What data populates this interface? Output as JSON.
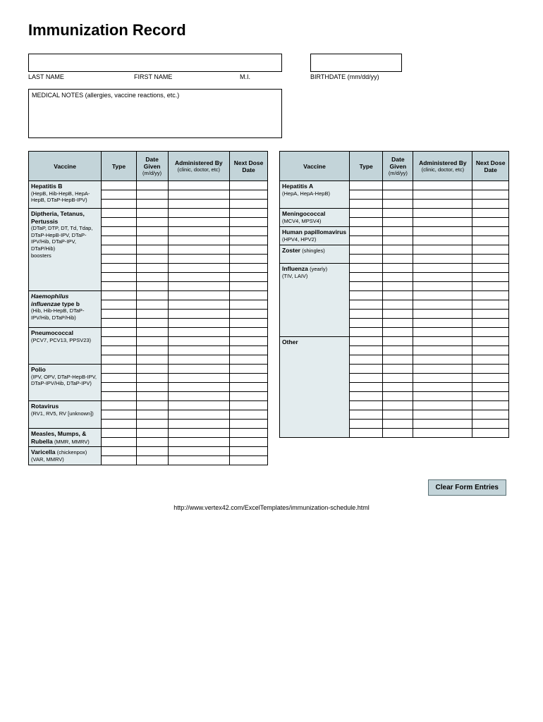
{
  "title": "Immunization Record",
  "fields": {
    "lastname_label": "LAST NAME",
    "firstname_label": "FIRST NAME",
    "mi_label": "M.I.",
    "birthdate_label": "BIRTHDATE (mm/dd/yy)",
    "notes_label": "MEDICAL NOTES (allergies, vaccine reactions, etc.)"
  },
  "headers": {
    "vaccine": "Vaccine",
    "type": "Type",
    "date": "Date Given",
    "date_sub": "(m/d/yy)",
    "admin": "Administered By",
    "admin_sub": "(clinic, doctor, etc)",
    "next": "Next Dose Date"
  },
  "left_sections": [
    {
      "name": "Hepatitis B",
      "detail": "(HepB, Hib-HepB, HepA-HepB, DTaP-HepB-IPV)",
      "rows": 3
    },
    {
      "name": "Diptheria, Tetanus, Pertussis",
      "detail": "(DTaP, DTP, DT, Td, Tdap, DTaP-HepB-IPV, DTaP-IPV/Hib, DTaP-IPV, DTaP/Hib)\n      boosters",
      "rows": 9
    },
    {
      "name_html": "<span class='italic'>Haemophilus influenzae</span> type b",
      "detail": "(Hib, Hib-HepB, DTaP-IPV/Hib, DTaP/Hib)",
      "rows": 4
    },
    {
      "name": "Pneumococcal",
      "detail": "(PCV7, PCV13, PPSV23)",
      "rows": 4
    },
    {
      "name": "Polio",
      "detail": "(IPV, OPV, DTaP-HepB-IPV, DTaP-IPV/Hib, DTaP-IPV)",
      "rows": 4
    },
    {
      "name": "Rotavirus",
      "detail": "(RV1, RV5, RV [unknown])",
      "rows": 3
    },
    {
      "name": "Measles, Mumps, & Rubella",
      "detail_inline": "(MMR, MMRV)",
      "rows": 2
    },
    {
      "name": "Varicella",
      "detail_inline": "(chickenpox) (VAR, MMRV)",
      "rows": 2
    }
  ],
  "right_sections": [
    {
      "name": "Hepatitis A",
      "detail": "(HepA, HepA-HepB)",
      "rows": 3
    },
    {
      "name": "Meningococcal",
      "detail": "(MCV4, MPSV4)",
      "rows": 2
    },
    {
      "name": "Human papillomavirus",
      "detail": "(HPV4, HPV2)",
      "rows": 2
    },
    {
      "name": "Zoster",
      "detail_inline": "(shingles)",
      "rows": 2
    },
    {
      "name": "Influenza",
      "detail_inline": "(yearly)",
      "detail": "(TIV, LAIV)",
      "rows": 8
    },
    {
      "name": "Other",
      "detail": "",
      "rows": 11
    }
  ],
  "button": "Clear Form Entries",
  "url": "http://www.vertex42.com/ExcelTemplates/immunization-schedule.html",
  "colors": {
    "header_bg": "#c3d4d9",
    "vaccine_bg": "#e3ecee",
    "border": "#000000",
    "button_bg": "#c3d4d9",
    "button_border": "#5a7075"
  }
}
